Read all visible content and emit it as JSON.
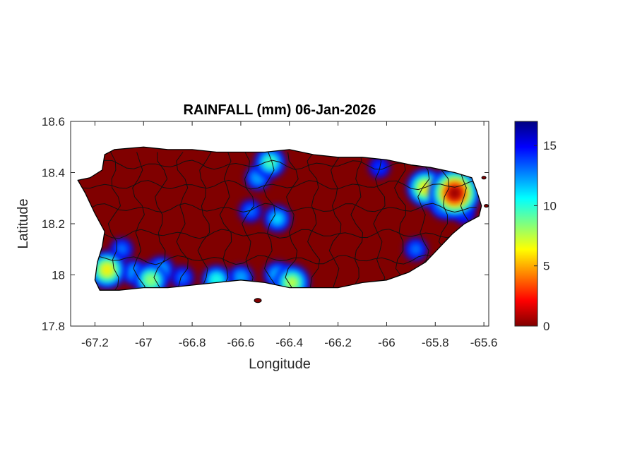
{
  "chart_data": {
    "type": "heatmap",
    "title": "RAINFALL (mm) 06-Jan-2026",
    "xlabel": "Longitude",
    "ylabel": "Latitude",
    "xlim": [
      -67.3,
      -65.58
    ],
    "ylim": [
      17.8,
      18.6
    ],
    "xticks": [
      -67.2,
      -67,
      -66.8,
      -66.6,
      -66.4,
      -66.2,
      -66,
      -65.8,
      -65.6
    ],
    "yticks": [
      17.8,
      18,
      18.2,
      18.4,
      18.6
    ],
    "colorbar": {
      "colormap": "jet-reversed",
      "range": [
        0,
        17
      ],
      "ticks": [
        0,
        5,
        10,
        15
      ]
    },
    "base_value": 0,
    "rain_cells": [
      {
        "lon": -65.72,
        "lat": 18.32,
        "value": 17
      },
      {
        "lon": -65.84,
        "lat": 18.34,
        "value": 11
      },
      {
        "lon": -65.76,
        "lat": 18.28,
        "value": 8
      },
      {
        "lon": -65.68,
        "lat": 18.24,
        "value": 3
      },
      {
        "lon": -66.48,
        "lat": 18.44,
        "value": 8
      },
      {
        "lon": -66.53,
        "lat": 18.38,
        "value": 5
      },
      {
        "lon": -66.45,
        "lat": 18.22,
        "value": 6
      },
      {
        "lon": -66.56,
        "lat": 18.25,
        "value": 4
      },
      {
        "lon": -66.39,
        "lat": 17.97,
        "value": 10
      },
      {
        "lon": -66.45,
        "lat": 18.0,
        "value": 6
      },
      {
        "lon": -66.6,
        "lat": 17.99,
        "value": 5
      },
      {
        "lon": -66.7,
        "lat": 17.98,
        "value": 7
      },
      {
        "lon": -66.84,
        "lat": 17.99,
        "value": 4
      },
      {
        "lon": -66.97,
        "lat": 17.98,
        "value": 9
      },
      {
        "lon": -66.93,
        "lat": 18.02,
        "value": 6
      },
      {
        "lon": -67.15,
        "lat": 18.02,
        "value": 11
      },
      {
        "lon": -67.04,
        "lat": 18.01,
        "value": 5
      },
      {
        "lon": -67.09,
        "lat": 18.1,
        "value": 4
      },
      {
        "lon": -65.88,
        "lat": 18.1,
        "value": 4
      },
      {
        "lon": -66.03,
        "lat": 18.42,
        "value": 3
      }
    ],
    "grid": false,
    "legend": "none"
  }
}
